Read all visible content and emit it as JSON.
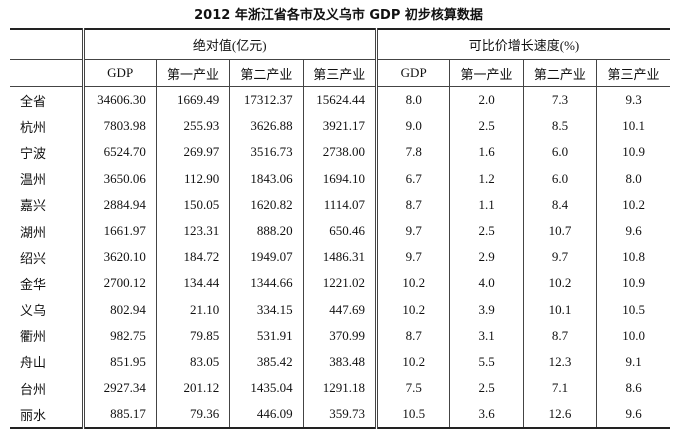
{
  "title": "2012 年浙江省各市及义乌市 GDP 初步核算数据",
  "table": {
    "groups": [
      "绝对值(亿元)",
      "可比价增长速度(%)"
    ],
    "subheaders": [
      [
        "GDP",
        "第一产业",
        "第二产业",
        "第三产业"
      ],
      [
        "GDP",
        "第一产业",
        "第二产业",
        "第三产业"
      ]
    ],
    "rows": [
      [
        "全省",
        "34606.30",
        "1669.49",
        "17312.37",
        "15624.44",
        "8.0",
        "2.0",
        "7.3",
        "9.3"
      ],
      [
        "杭州",
        "7803.98",
        "255.93",
        "3626.88",
        "3921.17",
        "9.0",
        "2.5",
        "8.5",
        "10.1"
      ],
      [
        "宁波",
        "6524.70",
        "269.97",
        "3516.73",
        "2738.00",
        "7.8",
        "1.6",
        "6.0",
        "10.9"
      ],
      [
        "温州",
        "3650.06",
        "112.90",
        "1843.06",
        "1694.10",
        "6.7",
        "1.2",
        "6.0",
        "8.0"
      ],
      [
        "嘉兴",
        "2884.94",
        "150.05",
        "1620.82",
        "1114.07",
        "8.7",
        "1.1",
        "8.4",
        "10.2"
      ],
      [
        "湖州",
        "1661.97",
        "123.31",
        "888.20",
        "650.46",
        "9.7",
        "2.5",
        "10.7",
        "9.6"
      ],
      [
        "绍兴",
        "3620.10",
        "184.72",
        "1949.07",
        "1486.31",
        "9.7",
        "2.9",
        "9.7",
        "10.8"
      ],
      [
        "金华",
        "2700.12",
        "134.44",
        "1344.66",
        "1221.02",
        "10.2",
        "4.0",
        "10.2",
        "10.9"
      ],
      [
        "义乌",
        "802.94",
        "21.10",
        "334.15",
        "447.69",
        "10.2",
        "3.9",
        "10.1",
        "10.5"
      ],
      [
        "衢州",
        "982.75",
        "79.85",
        "531.91",
        "370.99",
        "8.7",
        "3.1",
        "8.7",
        "10.0"
      ],
      [
        "舟山",
        "851.95",
        "83.05",
        "385.42",
        "383.48",
        "10.2",
        "5.5",
        "12.3",
        "9.1"
      ],
      [
        "台州",
        "2927.34",
        "201.12",
        "1435.04",
        "1291.18",
        "7.5",
        "2.5",
        "7.1",
        "8.6"
      ],
      [
        "丽水",
        "885.17",
        "79.36",
        "446.09",
        "359.73",
        "10.5",
        "3.6",
        "12.6",
        "9.6"
      ]
    ]
  }
}
